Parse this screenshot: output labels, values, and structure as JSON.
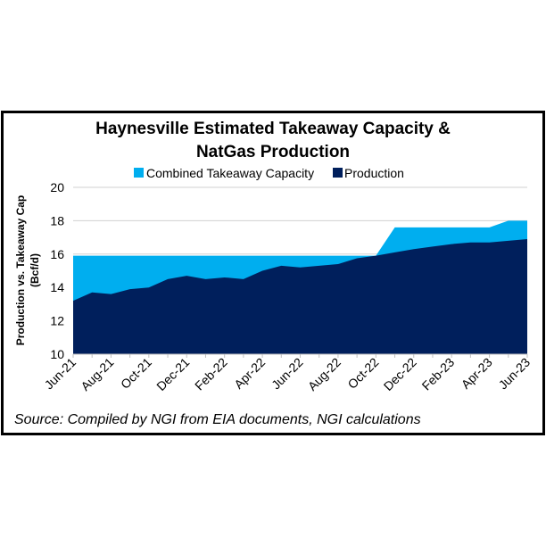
{
  "chart_data": {
    "type": "area",
    "title": "Haynesville Estimated Takeaway Capacity & NatGas Production",
    "title_lines": [
      "Haynesville Estimated Takeaway Capacity &",
      "NatGas Production"
    ],
    "ylabel_lines": [
      "Production vs. Takeaway Cap",
      "(Bcf/d)"
    ],
    "xlabel": "",
    "ylim": [
      10,
      20
    ],
    "yticks": [
      "10",
      "12",
      "14",
      "16",
      "18",
      "20"
    ],
    "grid": true,
    "legend_position": "top",
    "x": [
      "Jun-21",
      "Jul-21",
      "Aug-21",
      "Sep-21",
      "Oct-21",
      "Nov-21",
      "Dec-21",
      "Jan-22",
      "Feb-22",
      "Mar-22",
      "Apr-22",
      "May-22",
      "Jun-22",
      "Jul-22",
      "Aug-22",
      "Sep-22",
      "Oct-22",
      "Nov-22",
      "Dec-22",
      "Jan-23",
      "Feb-23",
      "Mar-23",
      "Apr-23",
      "May-23",
      "Jun-23"
    ],
    "xtick_labels": [
      "Jun-21",
      "Aug-21",
      "Oct-21",
      "Dec-21",
      "Feb-22",
      "Apr-22",
      "Jun-22",
      "Aug-22",
      "Oct-22",
      "Dec-22",
      "Feb-23",
      "Apr-23",
      "Jun-23"
    ],
    "series": [
      {
        "name": "Combined Takeaway Capacity",
        "color": "#00aeef",
        "values": [
          15.9,
          15.9,
          15.9,
          15.9,
          15.9,
          15.9,
          15.9,
          15.9,
          15.9,
          15.9,
          15.9,
          15.9,
          15.9,
          15.9,
          15.9,
          15.9,
          15.9,
          17.6,
          17.6,
          17.6,
          17.6,
          17.6,
          17.6,
          18.0,
          18.0
        ]
      },
      {
        "name": "Production",
        "color": "#001f5c",
        "values": [
          13.2,
          13.7,
          13.6,
          13.9,
          14.0,
          14.5,
          14.7,
          14.5,
          14.6,
          14.5,
          15.0,
          15.3,
          15.2,
          15.3,
          15.4,
          15.75,
          15.9,
          16.1,
          16.3,
          16.45,
          16.6,
          16.7,
          16.7,
          16.8,
          16.9
        ]
      }
    ],
    "source": "Source: Compiled by NGI from EIA documents, NGI calculations"
  }
}
